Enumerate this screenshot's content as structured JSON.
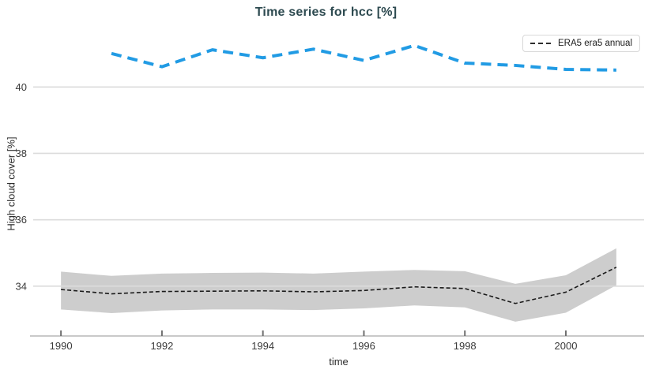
{
  "title": "Time series for hcc [%]",
  "legend": {
    "items": [
      {
        "label": "ERA5 era5 annual",
        "sample": "black-dashed-line"
      }
    ]
  },
  "colors": {
    "title": "#2d4a50",
    "band": "#cdcdcd",
    "grid": "#dcdcdc",
    "axis_line": "#c9c9c9",
    "tick_mark": "#6f6f6f",
    "tick_label": "#3a3a3a",
    "era5_line": "#1a1a1a",
    "blue_line": "#219be4",
    "legend_border": "#d8d8d8"
  },
  "chart_data": {
    "type": "line",
    "title": "Time series for hcc [%]",
    "xlabel": "time",
    "ylabel": "High cloud cover [%]",
    "xlim": [
      1989.45,
      2001.55
    ],
    "ylim": [
      32.5,
      41.67
    ],
    "xticks": [
      1990,
      1992,
      1994,
      1996,
      1998,
      2000
    ],
    "yticks": [
      34,
      36,
      38,
      40
    ],
    "grid": "horizontal",
    "legend_position": "top-right-inside",
    "series": [
      {
        "id": "era5-era5-annual",
        "label": "ERA5 era5 annual",
        "type": "line-with-uncertainty-band",
        "color": "#1a1a1a",
        "dash": "5 3",
        "width": 1.6,
        "x": [
          1990,
          1991,
          1992,
          1993,
          1994,
          1995,
          1996,
          1997,
          1998,
          1999,
          2000,
          2001
        ],
        "y": [
          33.9,
          33.77,
          33.84,
          33.85,
          33.86,
          33.83,
          33.87,
          33.98,
          33.93,
          33.48,
          33.82,
          34.57
        ],
        "band_lower": [
          33.3,
          33.19,
          33.27,
          33.3,
          33.3,
          33.28,
          33.33,
          33.42,
          33.36,
          32.93,
          33.2,
          34.03
        ],
        "band_upper": [
          34.44,
          34.31,
          34.38,
          34.4,
          34.41,
          34.38,
          34.44,
          34.49,
          34.45,
          34.07,
          34.33,
          35.14
        ]
      },
      {
        "id": "blue-dashed",
        "label": "",
        "type": "line",
        "color": "#219be4",
        "dash": "13 8",
        "width": 4,
        "x": [
          1991,
          1992,
          1993,
          1994,
          1995,
          1996,
          1997,
          1998,
          1999,
          2000,
          2001
        ],
        "y": [
          41.01,
          40.61,
          41.12,
          40.88,
          41.14,
          40.8,
          41.25,
          40.72,
          40.65,
          40.53,
          40.51
        ]
      }
    ]
  }
}
